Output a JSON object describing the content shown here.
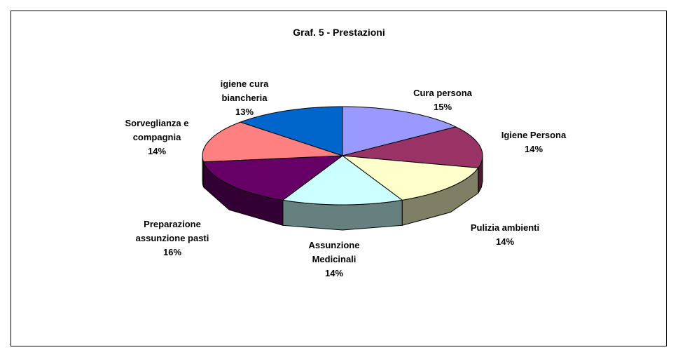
{
  "chart_data": {
    "type": "pie",
    "title": "Graf. 5 - Prestazioni",
    "categories": [
      "Cura persona",
      "Igiene Persona",
      "Pulizia ambienti",
      "Assunzione Medicinali",
      "Preparazione assunzione pasti",
      "Sorveglianza e compagnia",
      "igiene cura biancheria"
    ],
    "values": [
      15,
      14,
      14,
      14,
      16,
      14,
      13
    ],
    "value_labels": [
      "15%",
      "14%",
      "14%",
      "14%",
      "16%",
      "14%",
      "13%"
    ],
    "colors": [
      "#9999FF",
      "#993366",
      "#FFFFCC",
      "#CCFFFF",
      "#660066",
      "#FF8080",
      "#0066CC"
    ]
  }
}
